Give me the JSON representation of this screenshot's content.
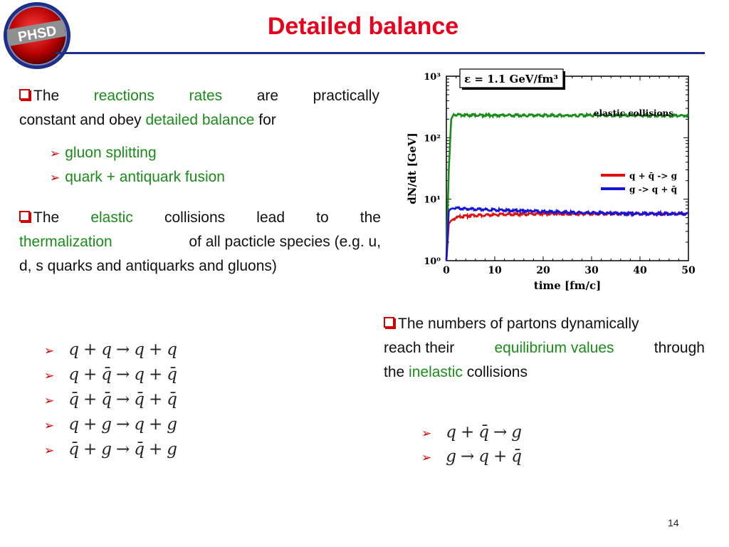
{
  "slide": {
    "title": "Detailed balance",
    "logo_text": "PHSD",
    "page_number": "14",
    "colors": {
      "title": "#e8001c",
      "rule": "#1c2f86",
      "highlight": "#1a8c1a",
      "bullet": "#d40000"
    }
  },
  "bullets": {
    "b1": {
      "w1": "The",
      "w2": "reactions",
      "w3": "rates",
      "w4": "are",
      "w5": "practically",
      "line2a": "constant and obey",
      "line2b": "detailed balance",
      "line2c": "for"
    },
    "sub1": [
      "gluon splitting",
      "quark + antiquark fusion"
    ],
    "b2": {
      "w1": "The",
      "w2": "elastic",
      "w3": "collisions",
      "w4": "lead",
      "w5": "to",
      "w6": "the",
      "line2a": "thermalization",
      "line2b": "of all pacticle species (e.g. u,",
      "line3": "d, s quarks and antiquarks and gluons)"
    },
    "b3": {
      "line1": "The numbers of partons dynamically",
      "line2a": "reach their",
      "line2b": "equilibrium values",
      "line2c": "through",
      "line3a": "the",
      "line3b": "inelastic",
      "line3c": "collisions"
    }
  },
  "equations_elastic": [
    [
      "q",
      "+",
      "q",
      "→",
      "q",
      "+",
      "q"
    ],
    [
      "q",
      "+",
      "q̄",
      "→",
      "q",
      "+",
      "q̄"
    ],
    [
      "q̄",
      "+",
      "q̄",
      "→",
      "q̄",
      "+",
      "q̄"
    ],
    [
      "q",
      "+",
      "g",
      "→",
      "q",
      "+",
      "g"
    ],
    [
      "q̄",
      "+",
      "g",
      "→",
      "q̄",
      "+",
      "g"
    ]
  ],
  "equations_inelastic": [
    [
      "q",
      "+",
      "q̄",
      "→",
      "g"
    ],
    [
      "g",
      "→",
      "q",
      "+",
      "q̄"
    ]
  ],
  "chart_data": {
    "type": "line",
    "annotation_box": "ε = 1.1 GeV/fm³",
    "annotation_text": "elastic collisions",
    "xlabel": "time [fm/c]",
    "ylabel": "dN/dt [GeV]",
    "xlim": [
      0,
      50
    ],
    "ylim": [
      1,
      1000
    ],
    "yscale": "log",
    "x_ticks": [
      "0",
      "10",
      "20",
      "30",
      "40",
      "50"
    ],
    "y_ticks": [
      "10⁰",
      "10¹",
      "10²",
      "10³"
    ],
    "legend_position": "right",
    "series": [
      {
        "name": "elastic collisions",
        "color": "#1a8c1a",
        "x": [
          0,
          0.5,
          1,
          1.5,
          2,
          5,
          10,
          20,
          30,
          40,
          50
        ],
        "y": [
          1,
          30,
          200,
          240,
          235,
          232,
          231,
          230,
          231,
          230,
          228
        ]
      },
      {
        "name": "q + q̄ -> g",
        "color": "#e01010",
        "x": [
          0,
          0.5,
          1,
          2,
          3,
          5,
          8,
          10,
          15,
          20,
          25,
          30,
          35,
          40,
          45,
          50
        ],
        "y": [
          1,
          4,
          4.5,
          5,
          5.2,
          5.4,
          5.5,
          5.6,
          5.7,
          5.8,
          5.8,
          5.8,
          5.8,
          5.8,
          5.8,
          5.8
        ]
      },
      {
        "name": "g -> q + q̄",
        "color": "#1515d8",
        "x": [
          0,
          0.5,
          1,
          2,
          3,
          5,
          8,
          10,
          15,
          20,
          25,
          30,
          35,
          40,
          45,
          50
        ],
        "y": [
          1,
          6.5,
          7,
          7.2,
          7,
          6.9,
          6.8,
          6.7,
          6.5,
          6.3,
          6.1,
          6,
          5.9,
          5.8,
          5.8,
          5.8
        ]
      }
    ]
  }
}
